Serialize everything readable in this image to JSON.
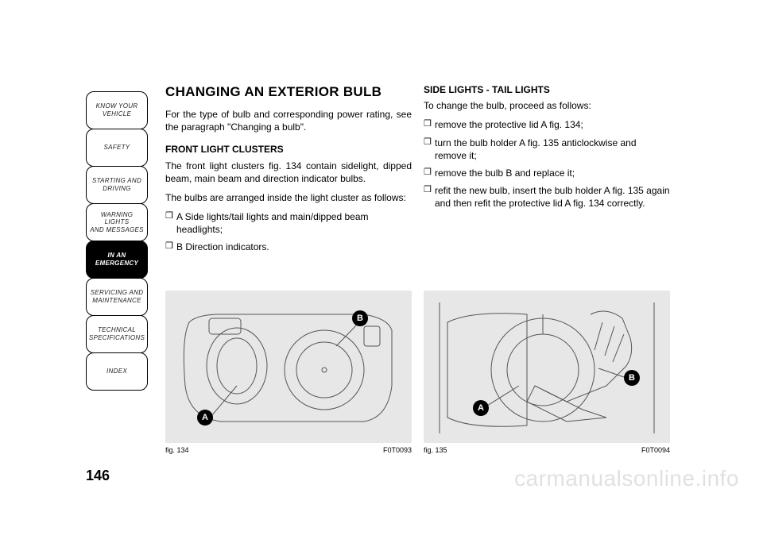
{
  "sidebar": {
    "tabs": [
      {
        "label": "KNOW YOUR\nVEHICLE",
        "active": false
      },
      {
        "label": "SAFETY",
        "active": false
      },
      {
        "label": "STARTING AND\nDRIVING",
        "active": false
      },
      {
        "label": "WARNING LIGHTS\nAND MESSAGES",
        "active": false
      },
      {
        "label": "IN AN\nEMERGENCY",
        "active": true
      },
      {
        "label": "SERVICING AND\nMAINTENANCE",
        "active": false
      },
      {
        "label": "TECHNICAL\nSPECIFICATIONS",
        "active": false
      },
      {
        "label": "INDEX",
        "active": false
      }
    ]
  },
  "col1": {
    "title": "CHANGING AN EXTERIOR BULB",
    "intro": "For the type of bulb and corresponding power rating, see the paragraph \"Changing a bulb\".",
    "sub": "FRONT LIGHT CLUSTERS",
    "p1": "The front light clusters fig. 134 contain sidelight, dipped beam, main beam and direction indicator bulbs.",
    "p2": "The bulbs are arranged inside the light cluster as follows:",
    "b1": "A Side lights/tail lights and main/dipped beam headlights;",
    "b2": "B Direction indicators."
  },
  "col2": {
    "sub": "SIDE LIGHTS - TAIL LIGHTS",
    "p1": "To change the bulb, proceed as follows:",
    "b1": "remove the protective lid A fig. 134;",
    "b2": "turn the bulb holder A fig. 135 anticlockwise and remove it;",
    "b3": "remove the bulb B and replace it;",
    "b4": "refit the new bulb, insert the bulb holder A fig. 135 again and then refit the protective lid A fig. 134 correctly."
  },
  "fig134": {
    "caption_left": "fig. 134",
    "caption_right": "F0T0093",
    "callouts": {
      "A": "A",
      "B": "B"
    }
  },
  "fig135": {
    "caption_left": "fig. 135",
    "caption_right": "F0T0094",
    "callouts": {
      "A": "A",
      "B": "B"
    }
  },
  "page_number": "146",
  "watermark": "carmanualsonline.info",
  "bullet_mark": "❒",
  "colors": {
    "figure_bg": "#e7e7e7",
    "text": "#000000",
    "tab_active_bg": "#000000",
    "tab_active_fg": "#ffffff",
    "line_art": "#555555",
    "watermark": "rgba(0,0,0,0.12)"
  }
}
